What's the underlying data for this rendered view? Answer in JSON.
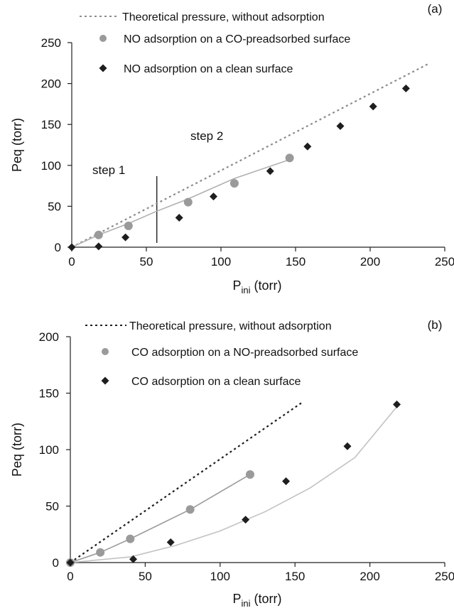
{
  "chart_data": [
    {
      "type": "scatter",
      "panel_label": "(a)",
      "xlabel_main": "P",
      "xlabel_sub": "ini",
      "xlabel_unit": " (torr)",
      "ylabel": "Peq (torr)",
      "xlim": [
        0,
        250
      ],
      "ylim": [
        0,
        250
      ],
      "xticks": [
        0,
        50,
        100,
        150,
        200,
        250
      ],
      "yticks": [
        0,
        50,
        100,
        150,
        200,
        250
      ],
      "annotations": [
        "step 1",
        "step 2"
      ],
      "step_divider_x": 57,
      "series": [
        {
          "name": "Theoretical pressure, without adsorption",
          "kind": "dotted-line",
          "color": "#8c8c8c",
          "x": [
            0,
            240
          ],
          "y": [
            0,
            225
          ]
        },
        {
          "name": "NO adsorption on a CO-preadsorbed surface",
          "kind": "circle",
          "color": "#9a9a9a",
          "x": [
            18,
            38,
            78,
            109,
            146
          ],
          "y": [
            15,
            26,
            55,
            78,
            109
          ]
        },
        {
          "name": "NO adsorption on a clean surface",
          "kind": "diamond",
          "color": "#1e1e1e",
          "x": [
            0,
            18,
            36,
            72,
            95,
            133,
            158,
            180,
            202,
            224
          ],
          "y": [
            0,
            1,
            12,
            36,
            62,
            93,
            123,
            148,
            172,
            194
          ]
        },
        {
          "name": "",
          "kind": "fit-line",
          "color": "#b0b0b0",
          "x": [
            0,
            18,
            38,
            57,
            78,
            109,
            146
          ],
          "y": [
            0,
            15,
            29,
            44,
            59,
            84,
            107
          ]
        }
      ]
    },
    {
      "type": "scatter",
      "panel_label": "(b)",
      "xlabel_main": "P",
      "xlabel_sub": "ini",
      "xlabel_unit": " (torr)",
      "ylabel": "Peq (torr)",
      "xlim": [
        0,
        250
      ],
      "ylim": [
        0,
        200
      ],
      "xticks": [
        0,
        50,
        100,
        150,
        200,
        250
      ],
      "yticks": [
        0,
        50,
        100,
        150,
        200
      ],
      "series": [
        {
          "name": "Theoretical pressure, without adsorption",
          "kind": "dotted-line",
          "color": "#1e1e1e",
          "x": [
            0,
            155
          ],
          "y": [
            0,
            142
          ]
        },
        {
          "name": "CO adsorption on a NO-preadsorbed surface",
          "kind": "circle",
          "color": "#9a9a9a",
          "x": [
            0,
            20,
            40,
            80,
            120
          ],
          "y": [
            0,
            9,
            21,
            47,
            78
          ]
        },
        {
          "name": "CO adsorption on a clean surface",
          "kind": "diamond",
          "color": "#1e1e1e",
          "x": [
            0,
            42,
            67,
            117,
            144,
            185,
            218
          ],
          "y": [
            0,
            3,
            18,
            38,
            72,
            103,
            140
          ]
        },
        {
          "name": "",
          "kind": "fit-line",
          "color": "#9a9a9a",
          "x": [
            0,
            20,
            40,
            80,
            120
          ],
          "y": [
            0,
            9,
            21,
            47,
            78
          ]
        },
        {
          "name": "",
          "kind": "fit-line",
          "color": "#c2c2c2",
          "x": [
            0,
            40,
            70,
            100,
            130,
            160,
            190,
            218
          ],
          "y": [
            0,
            5,
            15,
            28,
            45,
            66,
            93,
            138
          ]
        }
      ]
    }
  ]
}
